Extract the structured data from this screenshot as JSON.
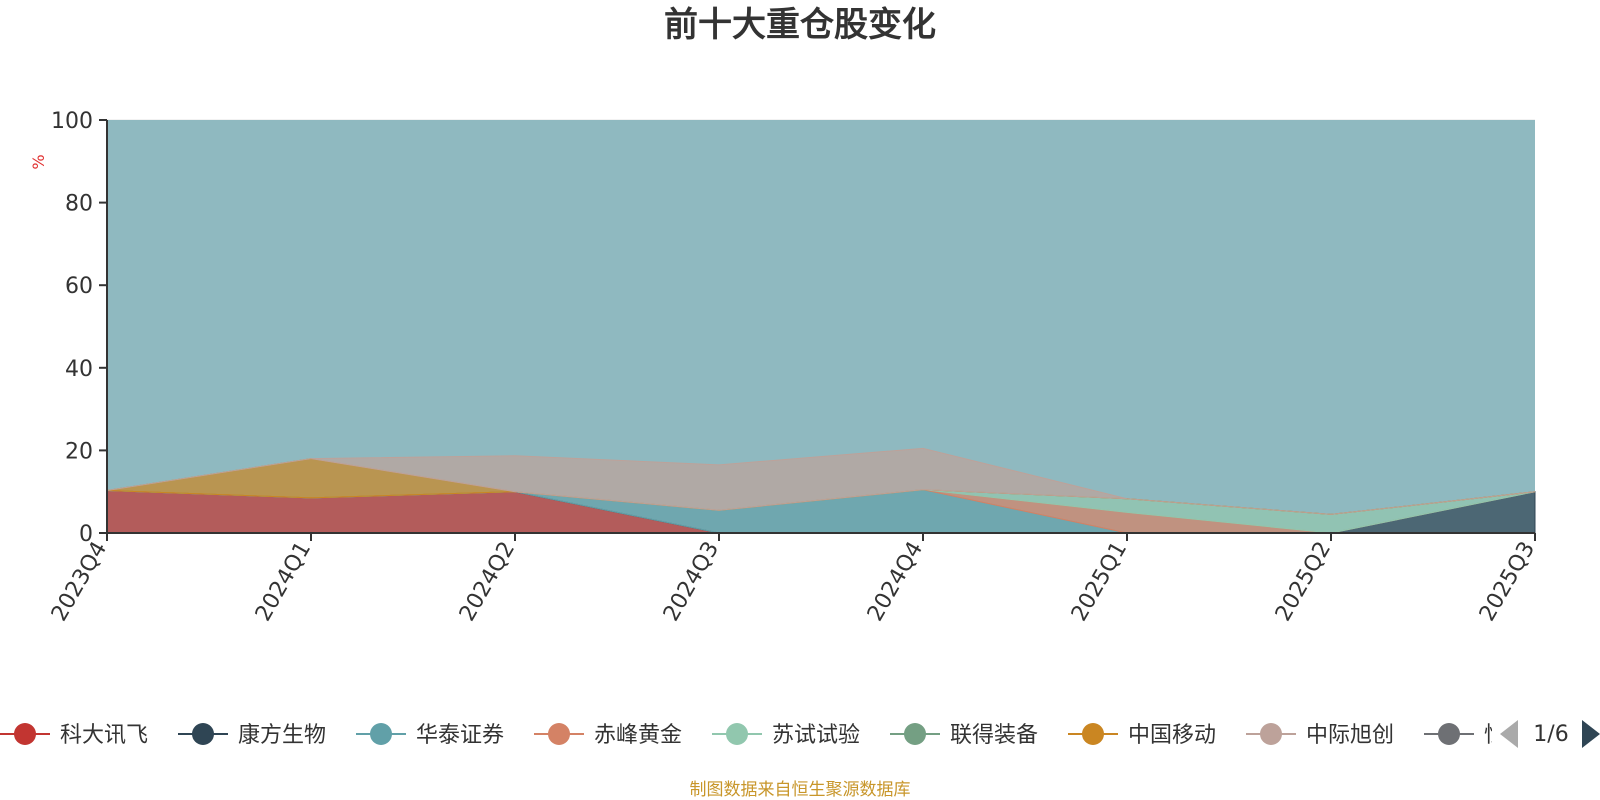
{
  "chart_data": {
    "type": "area",
    "stacked": true,
    "title": "前十大重仓股变化",
    "ylabel": "%",
    "ylim": [
      0,
      100
    ],
    "y_ticks": [
      "0",
      "20",
      "40",
      "60",
      "80",
      "100"
    ],
    "grid": true,
    "categories": [
      "2023Q4",
      "2024Q1",
      "2024Q2",
      "2024Q3",
      "2024Q4",
      "2025Q1",
      "2025Q2",
      "2025Q3"
    ],
    "series": [
      {
        "name": "科大讯飞",
        "color": "#c23531",
        "values": [
          10.3,
          8.5,
          10.0,
          0,
          0,
          0,
          0,
          0
        ]
      },
      {
        "name": "康方生物",
        "color": "#2f4554",
        "values": [
          0,
          0,
          0,
          0,
          0,
          0,
          0,
          10.0
        ]
      },
      {
        "name": "华泰证券",
        "color": "#61a0a8",
        "values": [
          0,
          0,
          0,
          5.5,
          10.5,
          0,
          0,
          0
        ]
      },
      {
        "name": "赤峰黄金",
        "color": "#d48265",
        "values": [
          0,
          0,
          0,
          0,
          0,
          5.0,
          0,
          0
        ]
      },
      {
        "name": "苏试试验",
        "color": "#91c7ae",
        "values": [
          0,
          0,
          0,
          0,
          0,
          3.3,
          4.5,
          0
        ]
      },
      {
        "name": "联得装备",
        "color": "#749f83",
        "values": [
          0,
          0,
          0,
          0,
          0,
          0,
          0,
          0
        ]
      },
      {
        "name": "中国移动",
        "color": "#ca8622",
        "values": [
          0,
          9.5,
          0,
          0,
          0,
          0,
          0,
          0
        ]
      },
      {
        "name": "中际旭创",
        "color": "#bda29a",
        "values": [
          0,
          0,
          8.7,
          11.0,
          10.0,
          0,
          0,
          0
        ]
      }
    ],
    "legend": {
      "position": "bottom",
      "page": "1/6",
      "partial_item": "恒"
    }
  },
  "footer": "制图数据来自恒生聚源数据库"
}
